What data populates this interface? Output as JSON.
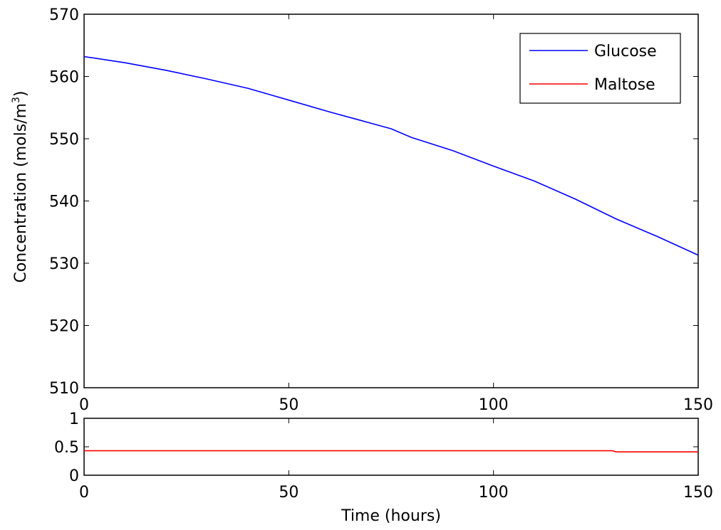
{
  "colors": {
    "glucose": "#0000ff",
    "maltose": "#ff0000",
    "axes": "#000000",
    "background": "#ffffff"
  },
  "chart_data": [
    {
      "type": "line",
      "panel": "top",
      "title": "",
      "xlabel": "",
      "ylabel": "Concentration (mols/m",
      "ylabel_superscript": "3",
      "ylabel_close": ")",
      "xlim": [
        0,
        150
      ],
      "ylim": [
        510,
        570
      ],
      "xticks": [
        0,
        50,
        100,
        150
      ],
      "yticks": [
        510,
        520,
        530,
        540,
        550,
        560,
        570
      ],
      "xtick_labels": [
        "0",
        "50",
        "100",
        "150"
      ],
      "ytick_labels": [
        "510",
        "520",
        "530",
        "540",
        "550",
        "560",
        "570"
      ],
      "grid": false,
      "legend": {
        "placement": "top-right",
        "entries": [
          "Glucose",
          "Maltose"
        ]
      },
      "series": [
        {
          "name": "Glucose",
          "color": "#0000ff",
          "x": [
            0,
            10,
            20,
            30,
            40,
            50,
            60,
            70,
            75,
            80,
            90,
            100,
            110,
            120,
            130,
            140,
            150
          ],
          "y": [
            563.2,
            562.2,
            561.0,
            559.6,
            558.1,
            556.2,
            554.3,
            552.5,
            551.6,
            550.2,
            548.1,
            545.6,
            543.2,
            540.3,
            537.1,
            534.3,
            531.3
          ]
        },
        {
          "name": "Maltose",
          "color": "#ff0000",
          "x": [],
          "y": []
        }
      ]
    },
    {
      "type": "line",
      "panel": "bottom",
      "title": "",
      "xlabel": "Time (hours)",
      "ylabel": "",
      "xlim": [
        0,
        150
      ],
      "ylim": [
        0,
        1
      ],
      "xticks": [
        0,
        50,
        100,
        150
      ],
      "yticks": [
        0,
        0.5,
        1
      ],
      "xtick_labels": [
        "0",
        "50",
        "100",
        "150"
      ],
      "ytick_labels": [
        "0",
        "0.5",
        "1"
      ],
      "grid": false,
      "series": [
        {
          "name": "Maltose",
          "color": "#ff0000",
          "x": [
            0,
            129,
            130,
            150
          ],
          "y": [
            0.43,
            0.43,
            0.41,
            0.41
          ]
        }
      ]
    }
  ]
}
